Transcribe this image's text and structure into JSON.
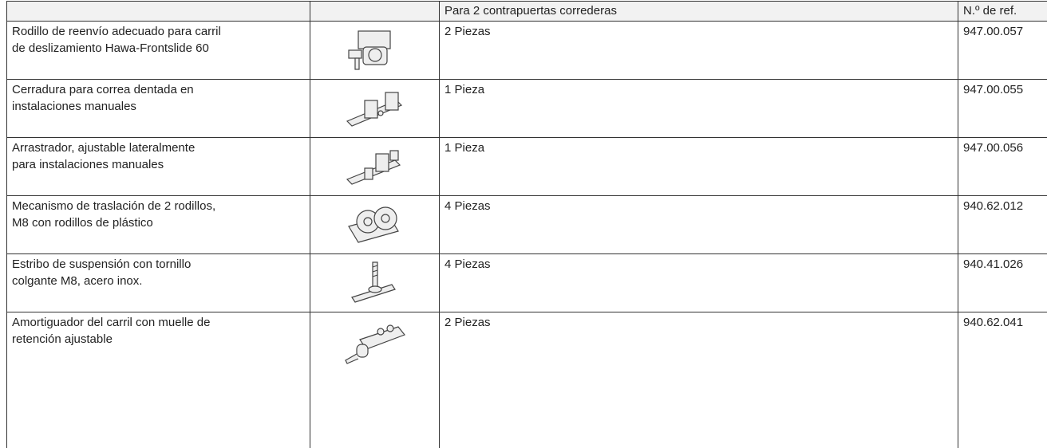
{
  "table": {
    "header": {
      "quantity": "Para 2 contrapuertas correderas",
      "ref": "N.º de ref."
    },
    "rows": [
      {
        "description": [
          "Rodillo de reenvío adecuado para carril",
          "de deslizamiento Hawa-Frontslide 60"
        ],
        "quantity": "2 Piezas",
        "ref": "947.00.057"
      },
      {
        "description": [
          "Cerradura para correa dentada en",
          "instalaciones manuales"
        ],
        "quantity": "1 Pieza",
        "ref": "947.00.055"
      },
      {
        "description": [
          "Arrastrador, ajustable lateralmente",
          "para instalaciones manuales"
        ],
        "quantity": "1 Pieza",
        "ref": "947.00.056"
      },
      {
        "description": [
          "Mecanismo de traslación de 2 rodillos,",
          "M8 con rodillos de plástico"
        ],
        "quantity": "4 Piezas",
        "ref": "940.62.012"
      },
      {
        "description": [
          "Estribo de suspensión con tornillo",
          "colgante M8, acero inox."
        ],
        "quantity": "4 Piezas",
        "ref": "940.41.026"
      },
      {
        "description": [
          "Amortiguador del carril con muelle de",
          "retención ajustable"
        ],
        "quantity": "2 Piezas",
        "ref": "940.62.041"
      }
    ]
  }
}
